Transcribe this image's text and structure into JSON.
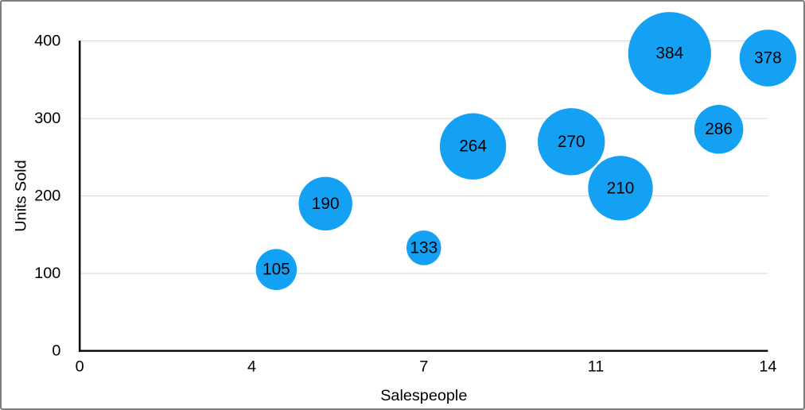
{
  "figure": {
    "background": "#ffffff",
    "border_color": "#7e7e7e"
  },
  "chart_data": {
    "type": "scatter",
    "subtype": "bubble",
    "title": "",
    "xlabel": "Salespeople",
    "ylabel": "Units Sold",
    "xlim": [
      0,
      14
    ],
    "ylim": [
      0,
      400
    ],
    "grid": "horizontal gridlines at y ticks, none vertical",
    "legend": "none",
    "x_ticks": [
      {
        "value": 0,
        "label": "0"
      },
      {
        "value": 3.5,
        "label": "4"
      },
      {
        "value": 7,
        "label": "7"
      },
      {
        "value": 10.5,
        "label": "11"
      },
      {
        "value": 14,
        "label": "14"
      }
    ],
    "y_ticks": [
      {
        "value": 0,
        "label": "0"
      },
      {
        "value": 100,
        "label": "100"
      },
      {
        "value": 200,
        "label": "200"
      },
      {
        "value": 300,
        "label": "300"
      },
      {
        "value": 400,
        "label": "400"
      }
    ],
    "points": [
      {
        "x": 4,
        "y": 105,
        "label": "105",
        "radius_px": 26
      },
      {
        "x": 5,
        "y": 190,
        "label": "190",
        "radius_px": 34
      },
      {
        "x": 7,
        "y": 133,
        "label": "133",
        "radius_px": 22
      },
      {
        "x": 8,
        "y": 264,
        "label": "264",
        "radius_px": 42
      },
      {
        "x": 10,
        "y": 270,
        "label": "270",
        "radius_px": 42.5
      },
      {
        "x": 11,
        "y": 210,
        "label": "210",
        "radius_px": 41
      },
      {
        "x": 12,
        "y": 384,
        "label": "384",
        "radius_px": 52.5
      },
      {
        "x": 13,
        "y": 286,
        "label": "286",
        "radius_px": 31
      },
      {
        "x": 14,
        "y": 378,
        "label": "378",
        "radius_px": 36
      }
    ],
    "colors": {
      "bubble_fill": "#14a0f3",
      "bubble_label": "#000000",
      "axis_line": "#000000",
      "gridline": "#d6d6d6",
      "tick_label": "#000000",
      "axis_title": "#000000"
    }
  }
}
